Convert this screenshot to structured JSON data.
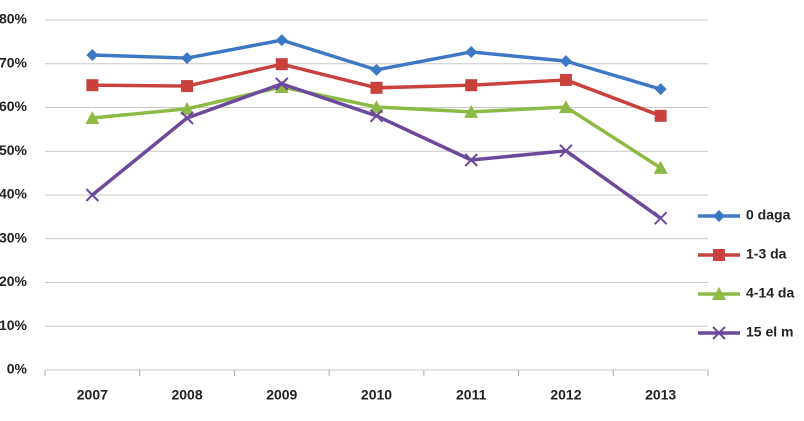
{
  "chart_data": {
    "type": "line",
    "categories": [
      "2007",
      "2008",
      "2009",
      "2010",
      "2011",
      "2012",
      "2013"
    ],
    "series": [
      {
        "name": "0 daga",
        "color": "#3d78c4",
        "marker": "diamond",
        "values": [
          72.0,
          71.3,
          75.4,
          68.6,
          72.7,
          70.6,
          64.2
        ]
      },
      {
        "name": " 1-3 da",
        "color": "#c8413c",
        "marker": "square",
        "values": [
          65.1,
          64.9,
          69.9,
          64.5,
          65.1,
          66.3,
          58.1
        ]
      },
      {
        "name": "4-14 da",
        "color": "#8dba45",
        "marker": "triangle",
        "values": [
          57.6,
          59.7,
          64.7,
          60.1,
          59.0,
          60.1,
          46.2
        ]
      },
      {
        "name": "15 el m",
        "color": "#6c4a9b",
        "marker": "x",
        "values": [
          40.0,
          57.6,
          65.4,
          58.1,
          48.0,
          50.1,
          34.7
        ]
      }
    ],
    "ylim": [
      0,
      80
    ],
    "yticks": [
      {
        "value": 0,
        "label": "0%"
      },
      {
        "value": 10,
        "label": "10%"
      },
      {
        "value": 20,
        "label": "20%"
      },
      {
        "value": 30,
        "label": "30%"
      },
      {
        "value": 40,
        "label": "40%"
      },
      {
        "value": 50,
        "label": "50%"
      },
      {
        "value": 60,
        "label": "60%"
      },
      {
        "value": 70,
        "label": "70%"
      },
      {
        "value": 80,
        "label": "80%"
      }
    ],
    "grid": true
  }
}
